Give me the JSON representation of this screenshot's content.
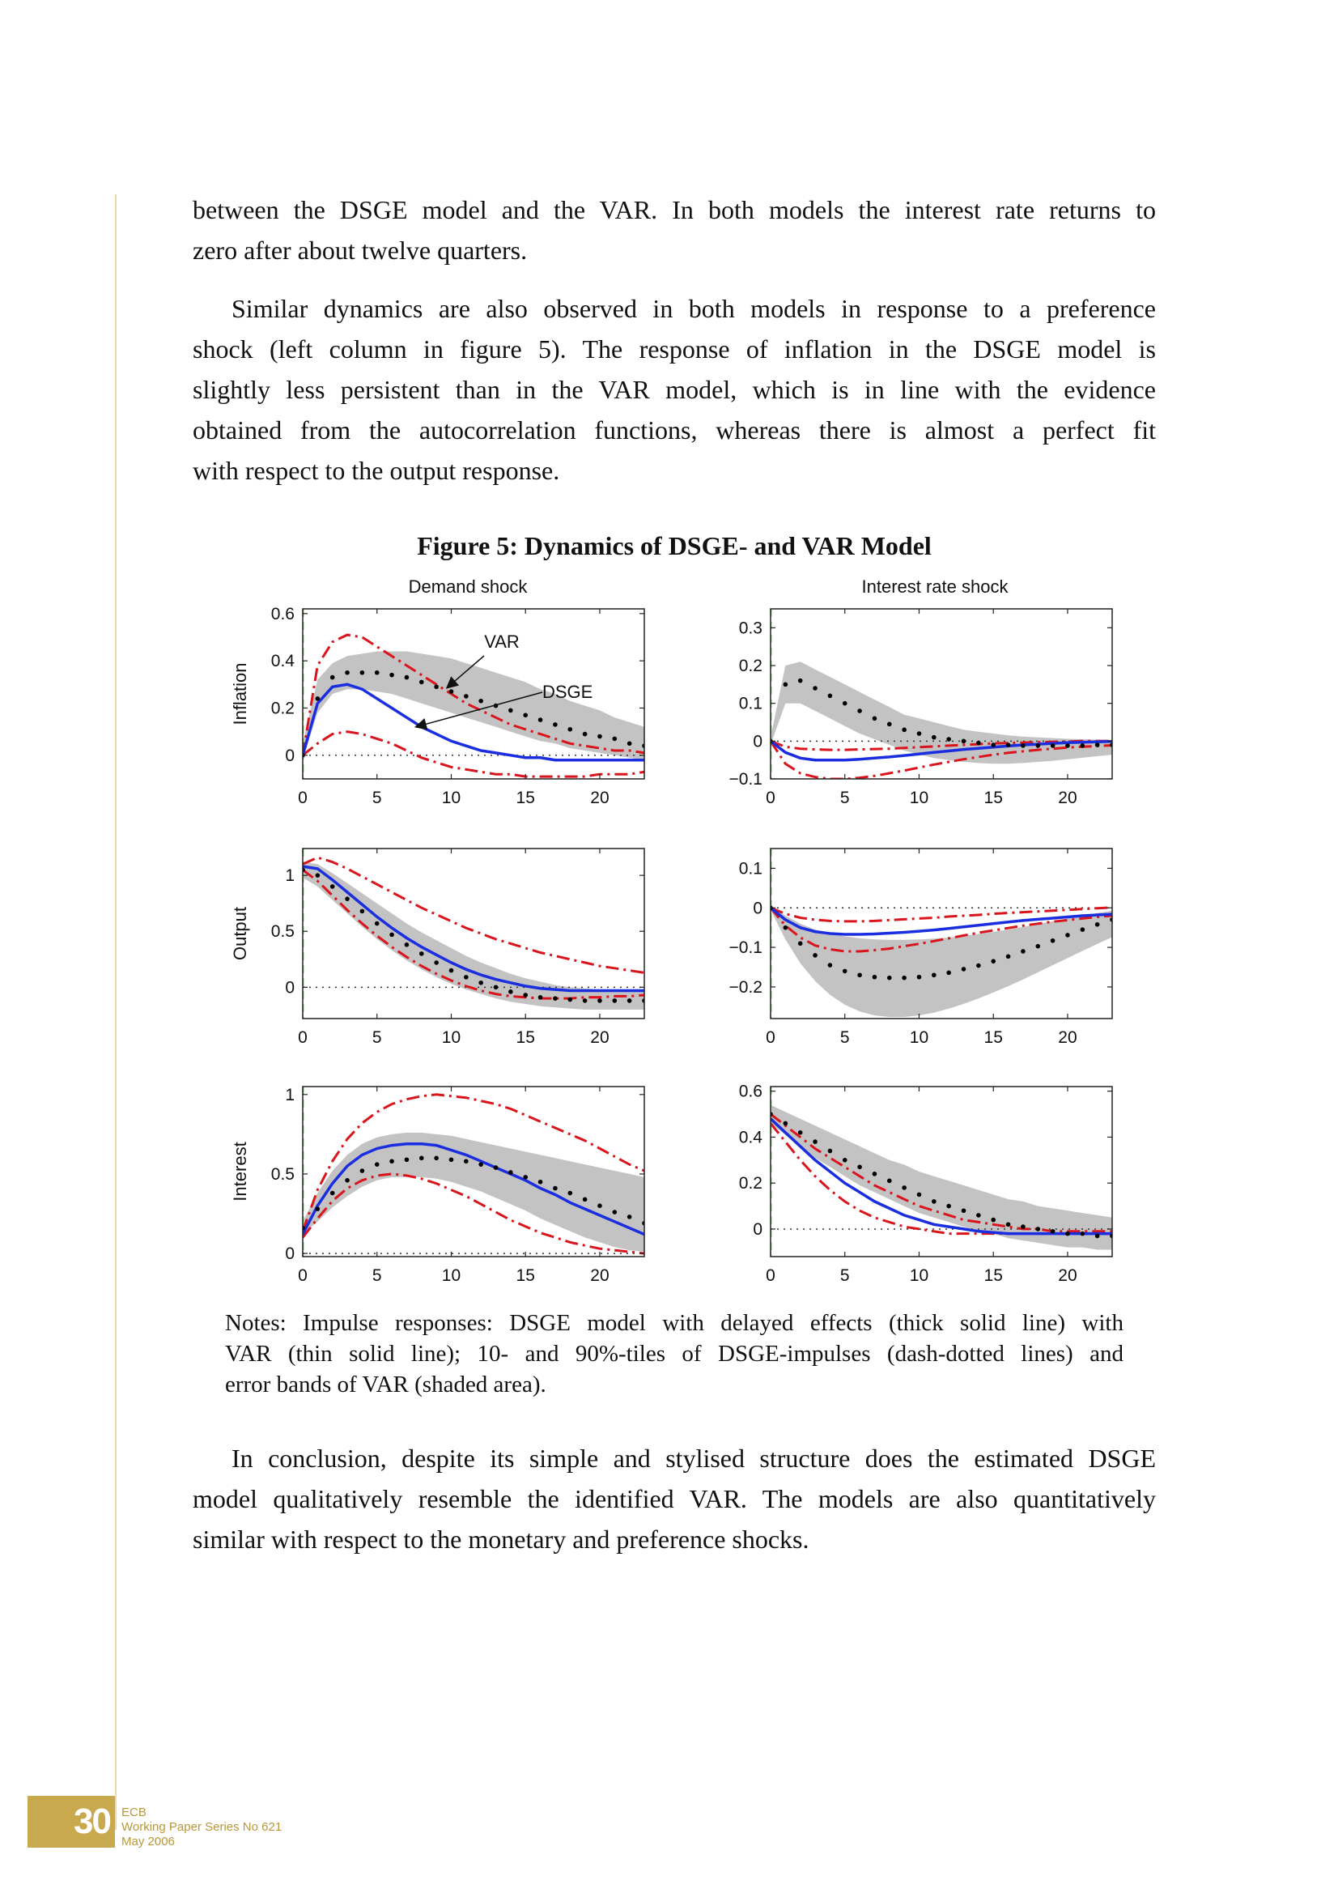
{
  "paragraphs": {
    "p1": [
      "between the DSGE model and the VAR. In both models the interest rate returns to",
      "zero after about twelve quarters."
    ],
    "p2": [
      "Similar dynamics are also observed in both models in response to a preference",
      "shock (left column in figure 5).  The response of inflation in the DSGE model is",
      "slightly less persistent than in the VAR model, which is in line with the evidence",
      "obtained from the autocorrelation functions, whereas there is almost a perfect fit",
      "with respect to the output response."
    ],
    "p3": [
      "In conclusion, despite its simple and stylised structure does the estimated DSGE",
      "model qualitatively resemble the identified VAR. The models are also quantitatively",
      "similar with respect to the monetary and preference shocks."
    ]
  },
  "figure": {
    "title": "Figure 5: Dynamics of DSGE- and VAR Model",
    "column_titles": [
      "Demand shock",
      "Interest rate shock"
    ],
    "row_labels": [
      "Inflation",
      "Output",
      "Interest"
    ],
    "annotations": {
      "var": "VAR",
      "dsge": "DSGE"
    },
    "notes": [
      "Notes: Impulse responses: DSGE model with delayed effects (thick solid line) with",
      "VAR (thin solid line); 10- and 90%-tiles of DSGE-impulses (dash-dotted lines) and",
      "error bands of VAR (shaded area)."
    ]
  },
  "chart_data": [
    {
      "type": "line",
      "id": "demand-inflation",
      "row": "Inflation",
      "column": "Demand shock",
      "xlim": [
        0,
        23
      ],
      "ylim": [
        -0.1,
        0.62
      ],
      "xticks": [
        0,
        5,
        10,
        15,
        20
      ],
      "yticks": [
        0,
        0.2,
        0.4,
        0.6
      ],
      "ytick_labels": [
        "0",
        "0.2",
        "0.4",
        "0.6"
      ],
      "x": [
        0,
        1,
        2,
        3,
        4,
        5,
        6,
        7,
        8,
        9,
        10,
        11,
        12,
        13,
        14,
        15,
        16,
        17,
        18,
        19,
        20,
        21,
        22,
        23
      ],
      "dsge": [
        0,
        0.22,
        0.29,
        0.3,
        0.28,
        0.24,
        0.2,
        0.16,
        0.12,
        0.09,
        0.06,
        0.04,
        0.02,
        0.01,
        0,
        -0.01,
        -0.01,
        -0.02,
        -0.02,
        -0.02,
        -0.02,
        -0.02,
        -0.02,
        -0.02
      ],
      "var_point": [
        0,
        0.24,
        0.33,
        0.35,
        0.35,
        0.35,
        0.34,
        0.33,
        0.31,
        0.29,
        0.27,
        0.25,
        0.23,
        0.21,
        0.19,
        0.17,
        0.15,
        0.13,
        0.11,
        0.09,
        0.08,
        0.07,
        0.05,
        0.04
      ],
      "band_upper": [
        0.05,
        0.32,
        0.39,
        0.42,
        0.43,
        0.44,
        0.44,
        0.44,
        0.43,
        0.42,
        0.41,
        0.39,
        0.37,
        0.35,
        0.33,
        0.31,
        0.28,
        0.26,
        0.23,
        0.21,
        0.19,
        0.16,
        0.14,
        0.12
      ],
      "band_lower": [
        -0.02,
        0.18,
        0.26,
        0.28,
        0.28,
        0.27,
        0.26,
        0.24,
        0.22,
        0.2,
        0.18,
        0.16,
        0.14,
        0.12,
        0.1,
        0.08,
        0.06,
        0.05,
        0.03,
        0.02,
        0.01,
        0,
        -0.01,
        -0.02
      ],
      "p90": [
        0,
        0.38,
        0.48,
        0.51,
        0.5,
        0.46,
        0.42,
        0.38,
        0.34,
        0.3,
        0.26,
        0.22,
        0.19,
        0.16,
        0.13,
        0.11,
        0.09,
        0.07,
        0.05,
        0.04,
        0.03,
        0.02,
        0.02,
        0.01
      ],
      "p10": [
        0,
        0.05,
        0.09,
        0.1,
        0.09,
        0.07,
        0.05,
        0.02,
        -0.01,
        -0.03,
        -0.05,
        -0.06,
        -0.07,
        -0.08,
        -0.08,
        -0.09,
        -0.09,
        -0.09,
        -0.09,
        -0.09,
        -0.08,
        -0.08,
        -0.08,
        -0.07
      ]
    },
    {
      "type": "line",
      "id": "interest-inflation",
      "row": "Inflation",
      "column": "Interest rate shock",
      "xlim": [
        0,
        23
      ],
      "ylim": [
        -0.1,
        0.35
      ],
      "xticks": [
        0,
        5,
        10,
        15,
        20
      ],
      "yticks": [
        -0.1,
        0,
        0.1,
        0.2,
        0.3
      ],
      "ytick_labels": [
        "−0.1",
        "0",
        "0.1",
        "0.2",
        "0.3"
      ],
      "x": [
        0,
        1,
        2,
        3,
        4,
        5,
        6,
        7,
        8,
        9,
        10,
        11,
        12,
        13,
        14,
        15,
        16,
        17,
        18,
        19,
        20,
        21,
        22,
        23
      ],
      "dsge": [
        0,
        -0.03,
        -0.045,
        -0.05,
        -0.05,
        -0.05,
        -0.048,
        -0.045,
        -0.042,
        -0.038,
        -0.034,
        -0.03,
        -0.026,
        -0.022,
        -0.019,
        -0.016,
        -0.013,
        -0.01,
        -0.008,
        -0.006,
        -0.004,
        -0.003,
        -0.002,
        -0.001
      ],
      "var_point": [
        0,
        0.15,
        0.16,
        0.14,
        0.12,
        0.1,
        0.08,
        0.06,
        0.045,
        0.03,
        0.02,
        0.01,
        0.005,
        0,
        -0.005,
        -0.01,
        -0.01,
        -0.012,
        -0.012,
        -0.012,
        -0.012,
        -0.012,
        -0.01,
        -0.01
      ],
      "band_upper": [
        0.01,
        0.2,
        0.21,
        0.19,
        0.17,
        0.15,
        0.13,
        0.11,
        0.09,
        0.07,
        0.06,
        0.05,
        0.04,
        0.03,
        0.025,
        0.02,
        0.015,
        0.012,
        0.01,
        0.008,
        0.006,
        0.005,
        0.004,
        0.003
      ],
      "band_lower": [
        -0.01,
        0.1,
        0.1,
        0.08,
        0.06,
        0.04,
        0.02,
        0.005,
        -0.01,
        -0.025,
        -0.035,
        -0.045,
        -0.05,
        -0.055,
        -0.058,
        -0.06,
        -0.06,
        -0.058,
        -0.055,
        -0.052,
        -0.048,
        -0.044,
        -0.04,
        -0.036
      ],
      "p90": [
        0,
        -0.015,
        -0.02,
        -0.022,
        -0.023,
        -0.023,
        -0.022,
        -0.021,
        -0.02,
        -0.018,
        -0.016,
        -0.014,
        -0.012,
        -0.01,
        -0.008,
        -0.006,
        -0.005,
        -0.004,
        -0.003,
        -0.002,
        -0.001,
        0,
        0,
        0
      ],
      "p10": [
        0,
        -0.06,
        -0.085,
        -0.095,
        -0.1,
        -0.1,
        -0.097,
        -0.092,
        -0.085,
        -0.078,
        -0.07,
        -0.062,
        -0.055,
        -0.048,
        -0.042,
        -0.036,
        -0.031,
        -0.027,
        -0.023,
        -0.02,
        -0.017,
        -0.015,
        -0.013,
        -0.011
      ]
    },
    {
      "type": "line",
      "id": "demand-output",
      "row": "Output",
      "column": "Demand shock",
      "xlim": [
        0,
        23
      ],
      "ylim": [
        -0.28,
        1.24
      ],
      "xticks": [
        0,
        5,
        10,
        15,
        20
      ],
      "yticks": [
        0,
        0.5,
        1
      ],
      "ytick_labels": [
        "0",
        "0.5",
        "1"
      ],
      "x": [
        0,
        1,
        2,
        3,
        4,
        5,
        6,
        7,
        8,
        9,
        10,
        11,
        12,
        13,
        14,
        15,
        16,
        17,
        18,
        19,
        20,
        21,
        22,
        23
      ],
      "dsge": [
        1.08,
        1.06,
        0.96,
        0.85,
        0.74,
        0.63,
        0.53,
        0.44,
        0.36,
        0.29,
        0.22,
        0.16,
        0.11,
        0.07,
        0.04,
        0.01,
        -0.01,
        -0.02,
        -0.03,
        -0.03,
        -0.03,
        -0.03,
        -0.03,
        -0.03
      ],
      "var_point": [
        1.05,
        1.0,
        0.9,
        0.79,
        0.68,
        0.57,
        0.47,
        0.38,
        0.3,
        0.22,
        0.15,
        0.09,
        0.04,
        0.0,
        -0.04,
        -0.07,
        -0.09,
        -0.1,
        -0.11,
        -0.12,
        -0.12,
        -0.12,
        -0.12,
        -0.12
      ],
      "band_upper": [
        1.12,
        1.1,
        1.02,
        0.93,
        0.84,
        0.75,
        0.66,
        0.57,
        0.49,
        0.42,
        0.35,
        0.28,
        0.22,
        0.17,
        0.12,
        0.08,
        0.05,
        0.02,
        0.0,
        -0.01,
        -0.02,
        -0.03,
        -0.04,
        -0.04
      ],
      "band_lower": [
        0.98,
        0.9,
        0.78,
        0.66,
        0.54,
        0.43,
        0.33,
        0.24,
        0.16,
        0.09,
        0.03,
        -0.02,
        -0.06,
        -0.1,
        -0.13,
        -0.15,
        -0.17,
        -0.18,
        -0.19,
        -0.2,
        -0.2,
        -0.2,
        -0.2,
        -0.2
      ],
      "p90": [
        1.1,
        1.16,
        1.12,
        1.06,
        0.99,
        0.92,
        0.85,
        0.78,
        0.71,
        0.65,
        0.59,
        0.53,
        0.48,
        0.43,
        0.39,
        0.35,
        0.31,
        0.28,
        0.25,
        0.22,
        0.19,
        0.17,
        0.15,
        0.13
      ],
      "p10": [
        1.05,
        0.95,
        0.82,
        0.69,
        0.57,
        0.46,
        0.36,
        0.27,
        0.19,
        0.12,
        0.06,
        0.01,
        -0.03,
        -0.06,
        -0.08,
        -0.09,
        -0.1,
        -0.1,
        -0.1,
        -0.09,
        -0.09,
        -0.08,
        -0.08,
        -0.07
      ]
    },
    {
      "type": "line",
      "id": "interest-output",
      "row": "Output",
      "column": "Interest rate shock",
      "xlim": [
        0,
        23
      ],
      "ylim": [
        -0.28,
        0.15
      ],
      "xticks": [
        0,
        5,
        10,
        15,
        20
      ],
      "yticks": [
        -0.2,
        -0.1,
        0,
        0.1
      ],
      "ytick_labels": [
        "−0.2",
        "−0.1",
        "0",
        "0.1"
      ],
      "x": [
        0,
        1,
        2,
        3,
        4,
        5,
        6,
        7,
        8,
        9,
        10,
        11,
        12,
        13,
        14,
        15,
        16,
        17,
        18,
        19,
        20,
        21,
        22,
        23
      ],
      "dsge": [
        0,
        -0.03,
        -0.05,
        -0.06,
        -0.065,
        -0.067,
        -0.067,
        -0.066,
        -0.064,
        -0.062,
        -0.059,
        -0.056,
        -0.052,
        -0.048,
        -0.044,
        -0.04,
        -0.036,
        -0.032,
        -0.029,
        -0.026,
        -0.023,
        -0.02,
        -0.018,
        -0.016
      ],
      "var_point": [
        0,
        -0.05,
        -0.09,
        -0.12,
        -0.145,
        -0.16,
        -0.17,
        -0.175,
        -0.177,
        -0.177,
        -0.175,
        -0.17,
        -0.164,
        -0.155,
        -0.146,
        -0.135,
        -0.123,
        -0.11,
        -0.097,
        -0.083,
        -0.069,
        -0.055,
        -0.042,
        -0.03
      ],
      "band_upper": [
        0.005,
        -0.02,
        -0.04,
        -0.055,
        -0.065,
        -0.072,
        -0.077,
        -0.08,
        -0.081,
        -0.081,
        -0.08,
        -0.078,
        -0.075,
        -0.071,
        -0.066,
        -0.061,
        -0.055,
        -0.048,
        -0.041,
        -0.034,
        -0.027,
        -0.02,
        -0.013,
        -0.007
      ],
      "band_lower": [
        -0.005,
        -0.08,
        -0.14,
        -0.185,
        -0.22,
        -0.245,
        -0.262,
        -0.272,
        -0.276,
        -0.276,
        -0.272,
        -0.265,
        -0.255,
        -0.243,
        -0.229,
        -0.214,
        -0.198,
        -0.181,
        -0.163,
        -0.145,
        -0.127,
        -0.109,
        -0.091,
        -0.074
      ],
      "p90": [
        0,
        -0.015,
        -0.025,
        -0.03,
        -0.033,
        -0.034,
        -0.034,
        -0.033,
        -0.031,
        -0.029,
        -0.027,
        -0.025,
        -0.022,
        -0.02,
        -0.018,
        -0.015,
        -0.013,
        -0.011,
        -0.009,
        -0.007,
        -0.005,
        -0.003,
        -0.001,
        0.001
      ],
      "p10": [
        0,
        -0.045,
        -0.075,
        -0.095,
        -0.105,
        -0.11,
        -0.11,
        -0.107,
        -0.103,
        -0.097,
        -0.091,
        -0.084,
        -0.077,
        -0.07,
        -0.063,
        -0.057,
        -0.051,
        -0.045,
        -0.04,
        -0.035,
        -0.031,
        -0.027,
        -0.023,
        -0.02
      ]
    },
    {
      "type": "line",
      "id": "demand-interest",
      "row": "Interest",
      "column": "Demand shock",
      "xlim": [
        0,
        23
      ],
      "ylim": [
        -0.02,
        1.05
      ],
      "xticks": [
        0,
        5,
        10,
        15,
        20
      ],
      "yticks": [
        0,
        0.5,
        1
      ],
      "ytick_labels": [
        "0",
        "0.5",
        "1"
      ],
      "x": [
        0,
        1,
        2,
        3,
        4,
        5,
        6,
        7,
        8,
        9,
        10,
        11,
        12,
        13,
        14,
        15,
        16,
        17,
        18,
        19,
        20,
        21,
        22,
        23
      ],
      "dsge": [
        0.12,
        0.3,
        0.44,
        0.55,
        0.62,
        0.66,
        0.68,
        0.69,
        0.69,
        0.68,
        0.65,
        0.62,
        0.58,
        0.54,
        0.5,
        0.46,
        0.41,
        0.37,
        0.32,
        0.28,
        0.24,
        0.2,
        0.16,
        0.12
      ],
      "var_point": [
        0.16,
        0.28,
        0.38,
        0.46,
        0.52,
        0.56,
        0.58,
        0.59,
        0.6,
        0.6,
        0.59,
        0.58,
        0.56,
        0.54,
        0.51,
        0.48,
        0.45,
        0.41,
        0.38,
        0.34,
        0.3,
        0.26,
        0.23,
        0.19
      ],
      "band_upper": [
        0.2,
        0.38,
        0.52,
        0.62,
        0.69,
        0.73,
        0.75,
        0.76,
        0.76,
        0.75,
        0.74,
        0.72,
        0.7,
        0.68,
        0.66,
        0.64,
        0.62,
        0.6,
        0.58,
        0.56,
        0.54,
        0.52,
        0.5,
        0.48
      ],
      "band_lower": [
        0.12,
        0.2,
        0.29,
        0.36,
        0.42,
        0.46,
        0.48,
        0.48,
        0.48,
        0.47,
        0.45,
        0.42,
        0.39,
        0.35,
        0.31,
        0.27,
        0.22,
        0.18,
        0.14,
        0.1,
        0.07,
        0.04,
        0.02,
        0.01
      ],
      "p90": [
        0.14,
        0.4,
        0.58,
        0.72,
        0.82,
        0.89,
        0.94,
        0.97,
        0.99,
        1.0,
        0.99,
        0.98,
        0.96,
        0.94,
        0.91,
        0.87,
        0.83,
        0.79,
        0.75,
        0.71,
        0.66,
        0.61,
        0.56,
        0.52
      ],
      "p10": [
        0.1,
        0.22,
        0.33,
        0.41,
        0.46,
        0.49,
        0.5,
        0.49,
        0.47,
        0.44,
        0.4,
        0.36,
        0.31,
        0.26,
        0.21,
        0.17,
        0.13,
        0.1,
        0.07,
        0.05,
        0.03,
        0.02,
        0.01,
        0.0
      ]
    },
    {
      "type": "line",
      "id": "interest-interest",
      "row": "Interest",
      "column": "Interest rate shock",
      "xlim": [
        0,
        23
      ],
      "ylim": [
        -0.12,
        0.62
      ],
      "xticks": [
        0,
        5,
        10,
        15,
        20
      ],
      "yticks": [
        0,
        0.2,
        0.4,
        0.6
      ],
      "ytick_labels": [
        "0",
        "0.2",
        "0.4",
        "0.6"
      ],
      "x": [
        0,
        1,
        2,
        3,
        4,
        5,
        6,
        7,
        8,
        9,
        10,
        11,
        12,
        13,
        14,
        15,
        16,
        17,
        18,
        19,
        20,
        21,
        22,
        23
      ],
      "dsge": [
        0.48,
        0.42,
        0.36,
        0.3,
        0.25,
        0.2,
        0.16,
        0.12,
        0.09,
        0.06,
        0.04,
        0.02,
        0.01,
        0,
        -0.01,
        -0.015,
        -0.02,
        -0.02,
        -0.02,
        -0.02,
        -0.02,
        -0.02,
        -0.02,
        -0.02
      ],
      "var_point": [
        0.5,
        0.46,
        0.42,
        0.38,
        0.34,
        0.3,
        0.27,
        0.24,
        0.21,
        0.18,
        0.15,
        0.12,
        0.1,
        0.08,
        0.06,
        0.04,
        0.02,
        0.01,
        0,
        -0.01,
        -0.02,
        -0.02,
        -0.03,
        -0.03
      ],
      "band_upper": [
        0.54,
        0.51,
        0.48,
        0.45,
        0.42,
        0.39,
        0.36,
        0.33,
        0.3,
        0.28,
        0.25,
        0.23,
        0.21,
        0.19,
        0.17,
        0.15,
        0.13,
        0.12,
        0.1,
        0.09,
        0.08,
        0.07,
        0.06,
        0.05
      ],
      "band_lower": [
        0.46,
        0.41,
        0.36,
        0.31,
        0.27,
        0.23,
        0.19,
        0.16,
        0.13,
        0.1,
        0.07,
        0.05,
        0.03,
        0.01,
        -0.01,
        -0.02,
        -0.04,
        -0.05,
        -0.06,
        -0.07,
        -0.08,
        -0.08,
        -0.09,
        -0.09
      ],
      "p90": [
        0.5,
        0.45,
        0.4,
        0.35,
        0.31,
        0.27,
        0.23,
        0.19,
        0.16,
        0.13,
        0.1,
        0.08,
        0.06,
        0.04,
        0.03,
        0.02,
        0.01,
        0,
        0,
        -0.01,
        -0.01,
        -0.01,
        -0.01,
        -0.01
      ],
      "p10": [
        0.46,
        0.38,
        0.3,
        0.23,
        0.17,
        0.12,
        0.08,
        0.05,
        0.03,
        0.01,
        0,
        -0.01,
        -0.02,
        -0.02,
        -0.02,
        -0.02,
        -0.02,
        -0.02,
        -0.02,
        -0.02,
        -0.02,
        -0.02,
        -0.02,
        -0.02
      ]
    }
  ],
  "footer": {
    "page_number": "30",
    "lines": [
      "ECB",
      "Working Paper Series No 621",
      "May 2006"
    ]
  },
  "colors": {
    "dsge_line": "#1a2ee0",
    "percentile_line": "#d9141c",
    "var_dots": "#000000",
    "band": "#c3c3c3",
    "shock_marker": "#7fe83a",
    "footer_accent": "#c9a94e"
  }
}
